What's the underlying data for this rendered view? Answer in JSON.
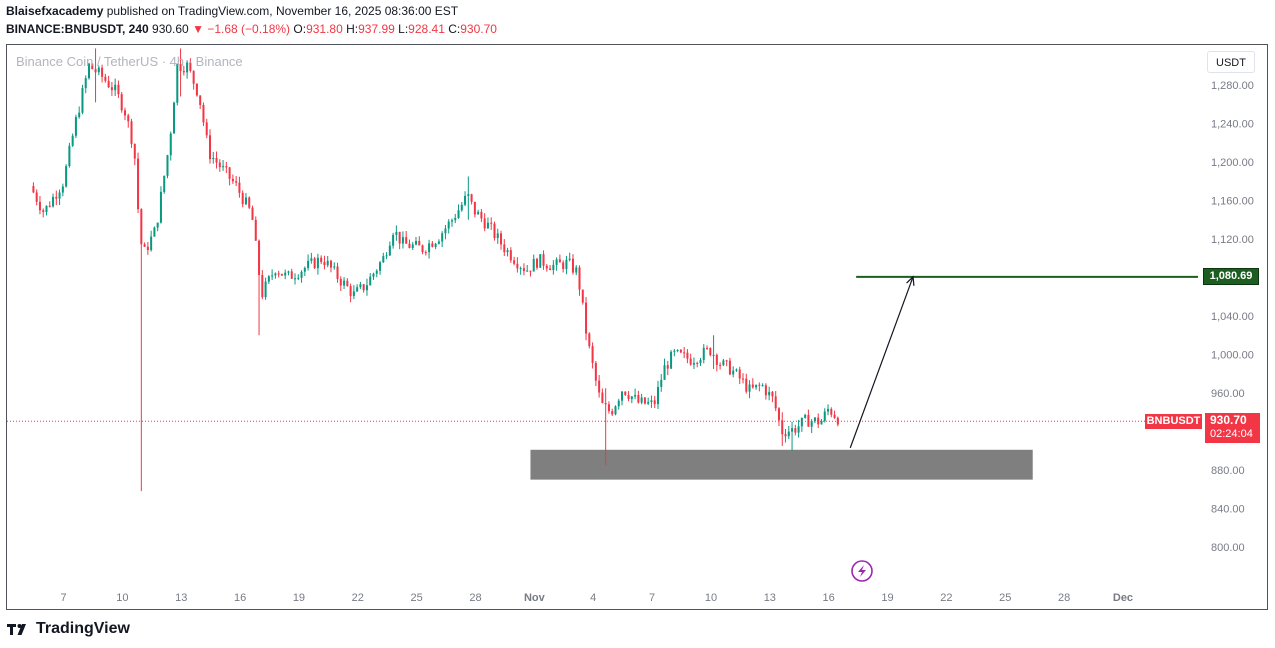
{
  "header": {
    "author": "Blaisefxacademy",
    "published_text": "published on TradingView.com, November 16, 2025 08:36:00 EST",
    "symbol": "BINANCE:BNBUSDT, 240",
    "last": "930.60",
    "change_arrow": "▼",
    "change": "−1.68 (−0.18%)",
    "o_label": "O:",
    "o_value": "931.80",
    "h_label": "H:",
    "h_value": "937.99",
    "l_label": "L:",
    "l_value": "928.41",
    "c_label": "C:",
    "c_value": "930.70"
  },
  "watermark": "Binance Coin / TetherUS · 4h · Binance",
  "currency": "USDT",
  "branding": "TradingView",
  "price_tag": {
    "symbol": "BNBUSDT",
    "price": "930.70",
    "countdown": "02:24:04"
  },
  "target_tag": "1,080.69",
  "colors": {
    "up": "#089981",
    "down": "#f23645",
    "zone": "#787878",
    "target_line": "#1b5e20",
    "accent_icon": "#9c27b0"
  },
  "chart_data": {
    "type": "candlestick",
    "ylim": [
      765,
      1318
    ],
    "y_ticks": [
      800,
      840,
      880,
      920,
      960,
      1000,
      1040,
      1080,
      1120,
      1160,
      1200,
      1240,
      1280
    ],
    "y_tick_labels": [
      "800.00",
      "840.00",
      "880.00",
      "",
      "960.00",
      "1,000.00",
      "1,040.00",
      "",
      "1,120.00",
      "1,160.00",
      "1,200.00",
      "1,240.00",
      "1,280.00"
    ],
    "x_ticks": [
      {
        "label": "7",
        "day": 7
      },
      {
        "label": "10",
        "day": 10
      },
      {
        "label": "13",
        "day": 13
      },
      {
        "label": "16",
        "day": 16
      },
      {
        "label": "19",
        "day": 19
      },
      {
        "label": "22",
        "day": 22
      },
      {
        "label": "25",
        "day": 25
      },
      {
        "label": "28",
        "day": 28
      },
      {
        "label": "Nov",
        "day": 31
      },
      {
        "label": "4",
        "day": 34
      },
      {
        "label": "7",
        "day": 37
      },
      {
        "label": "10",
        "day": 40
      },
      {
        "label": "13",
        "day": 43
      },
      {
        "label": "16",
        "day": 46
      },
      {
        "label": "19",
        "day": 49
      },
      {
        "label": "22",
        "day": 52
      },
      {
        "label": "25",
        "day": 55
      },
      {
        "label": "28",
        "day": 58
      },
      {
        "label": "Dec",
        "day": 61
      }
    ],
    "candles_per_day": 6,
    "start_day": 5.3,
    "anchors": [
      [
        5.3,
        1175
      ],
      [
        6.0,
        1148
      ],
      [
        7.0,
        1180
      ],
      [
        7.6,
        1240
      ],
      [
        8.3,
        1300
      ],
      [
        8.9,
        1290
      ],
      [
        9.6,
        1275
      ],
      [
        10.1,
        1255
      ],
      [
        10.6,
        1215
      ],
      [
        10.9,
        1120
      ],
      [
        11.1,
        1105
      ],
      [
        11.7,
        1130
      ],
      [
        12.4,
        1220
      ],
      [
        12.8,
        1300
      ],
      [
        13.3,
        1300
      ],
      [
        13.9,
        1270
      ],
      [
        14.4,
        1210
      ],
      [
        15.0,
        1195
      ],
      [
        15.8,
        1175
      ],
      [
        16.6,
        1145
      ],
      [
        17.1,
        1062
      ],
      [
        17.8,
        1090
      ],
      [
        18.4,
        1080
      ],
      [
        19.3,
        1090
      ],
      [
        20.2,
        1100
      ],
      [
        21.0,
        1080
      ],
      [
        21.8,
        1062
      ],
      [
        22.4,
        1072
      ],
      [
        23.3,
        1100
      ],
      [
        23.8,
        1130
      ],
      [
        24.3,
        1115
      ],
      [
        25.3,
        1110
      ],
      [
        26.1,
        1122
      ],
      [
        26.8,
        1140
      ],
      [
        27.6,
        1165
      ],
      [
        27.9,
        1150
      ],
      [
        28.6,
        1135
      ],
      [
        29.5,
        1110
      ],
      [
        30.2,
        1095
      ],
      [
        30.6,
        1088
      ],
      [
        31.2,
        1098
      ],
      [
        32.0,
        1092
      ],
      [
        32.7,
        1095
      ],
      [
        33.2,
        1085
      ],
      [
        33.7,
        1015
      ],
      [
        34.1,
        975
      ],
      [
        34.4,
        948
      ],
      [
        34.9,
        940
      ],
      [
        35.5,
        965
      ],
      [
        36.3,
        950
      ],
      [
        37.1,
        948
      ],
      [
        37.6,
        985
      ],
      [
        38.1,
        1000
      ],
      [
        39.0,
        995
      ],
      [
        40.0,
        1005
      ],
      [
        40.5,
        990
      ],
      [
        41.0,
        985
      ],
      [
        41.6,
        972
      ],
      [
        42.0,
        962
      ],
      [
        42.6,
        968
      ],
      [
        43.2,
        952
      ],
      [
        43.6,
        920
      ],
      [
        44.2,
        922
      ],
      [
        44.9,
        932
      ],
      [
        45.6,
        930
      ],
      [
        46.0,
        944
      ],
      [
        46.6,
        931
      ]
    ],
    "wicks": [
      [
        11.0,
        858,
        1140
      ],
      [
        34.6,
        885,
        965
      ],
      [
        17.0,
        1020,
        1075
      ],
      [
        27.7,
        1140,
        1185
      ],
      [
        40.2,
        985,
        1020
      ],
      [
        43.6,
        905,
        940
      ],
      [
        44.1,
        900,
        930
      ],
      [
        8.6,
        1262,
        1318
      ],
      [
        12.9,
        1268,
        1318
      ]
    ],
    "support_zone": {
      "price_low": 870,
      "price_high": 901,
      "day_from": 30.8,
      "day_to": 56.4
    },
    "target_level": {
      "price": 1080.69,
      "day_from": 47.4
    },
    "arrow": {
      "from_day": 47.1,
      "from_price": 903,
      "to_day": 50.3,
      "to_price": 1080.69
    },
    "last_price": 930.7
  }
}
